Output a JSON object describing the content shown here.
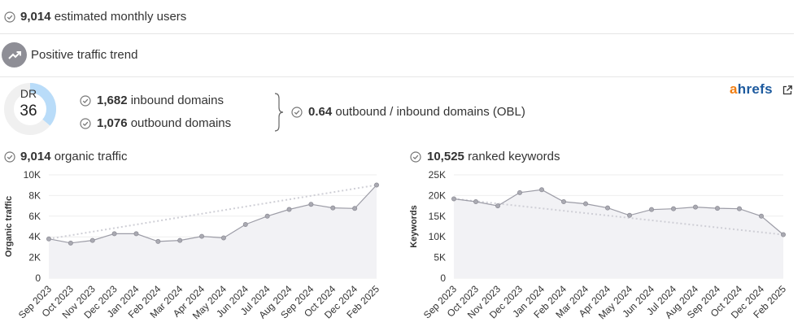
{
  "summary": {
    "monthly_users_value": "9,014",
    "monthly_users_label": "estimated monthly users",
    "trend_label": "Positive traffic trend"
  },
  "dr": {
    "label": "DR",
    "value": "36",
    "value_fraction": 0.36,
    "inbound_value": "1,682",
    "inbound_label": "inbound domains",
    "outbound_value": "1,076",
    "outbound_label": "outbound domains",
    "obl_value": "0.64",
    "obl_label": "outbound / inbound domains (OBL)"
  },
  "brand": {
    "name_a": "a",
    "name_rest": "hrefs",
    "icon": "external-link-icon",
    "color_a": "#f07e13",
    "color_rest": "#1d5a9e"
  },
  "colors": {
    "line": "#9c9ca6",
    "area": "#f2f2f5",
    "trend": "#cfcfd6",
    "grid": "#eeeeee",
    "check": "#777777",
    "dr_fill": "#b9dcf9",
    "dr_track": "#f0f0f0"
  },
  "chart_data": [
    {
      "type": "area",
      "header_value": "9,014",
      "header_label": "organic traffic",
      "ylabel": "Organic traffic",
      "ylim": [
        0,
        10000
      ],
      "yticks": [
        0,
        2000,
        4000,
        6000,
        8000,
        10000
      ],
      "ytick_labels": [
        "0",
        "2K",
        "4K",
        "6K",
        "8K",
        "10K"
      ],
      "categories": [
        "Sep 2023",
        "Oct 2023",
        "Nov 2023",
        "Dec 2023",
        "Jan 2024",
        "Feb 2024",
        "Mar 2024",
        "Apr 2024",
        "May 2024",
        "Jun 2024",
        "Jul 2024",
        "Aug 2024",
        "Sep 2024",
        "Oct 2024",
        "Dec 2024",
        "Feb 2025"
      ],
      "values": [
        3800,
        3400,
        3650,
        4300,
        4300,
        3550,
        3650,
        4050,
        3900,
        5200,
        6000,
        6650,
        7150,
        6800,
        6750,
        9014
      ],
      "trend": [
        3800,
        9014
      ],
      "grid": true
    },
    {
      "type": "area",
      "header_value": "10,525",
      "header_label": "ranked keywords",
      "ylabel": "Keywords",
      "ylim": [
        0,
        25000
      ],
      "yticks": [
        0,
        5000,
        10000,
        15000,
        20000,
        25000
      ],
      "ytick_labels": [
        "0",
        "5K",
        "10K",
        "15K",
        "20K",
        "25K"
      ],
      "categories": [
        "Sep 2023",
        "Oct 2023",
        "Nov 2023",
        "Dec 2023",
        "Jan 2024",
        "Feb 2024",
        "Mar 2024",
        "Apr 2024",
        "May 2024",
        "Jun 2024",
        "Jul 2024",
        "Aug 2024",
        "Sep 2024",
        "Oct 2024",
        "Dec 2024",
        "Feb 2025"
      ],
      "values": [
        19200,
        18500,
        17500,
        20700,
        21400,
        18500,
        18000,
        17000,
        15200,
        16600,
        16800,
        17200,
        16900,
        16800,
        15000,
        10525
      ],
      "trend": [
        19200,
        10525
      ],
      "grid": true
    }
  ]
}
